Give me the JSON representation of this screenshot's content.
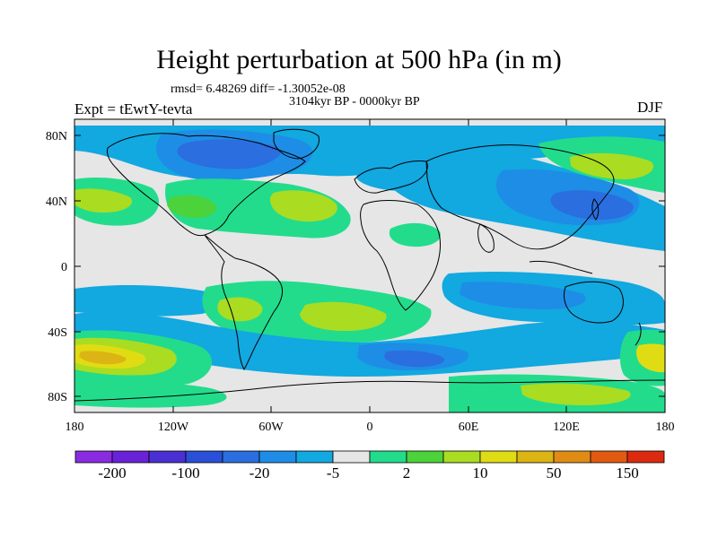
{
  "header": {
    "title": "Height perturbation at 500 hPa (in m)",
    "stats": "rmsd= 6.48269 diff= -1.30052e-08",
    "period": "3104kyr BP - 0000kyr BP",
    "experiment": "Expt = tEwtY-tevta",
    "season": "DJF"
  },
  "map": {
    "lat_labels": [
      "80N",
      "40N",
      "0",
      "40S",
      "80S"
    ],
    "lon_labels": [
      "180",
      "120W",
      "60W",
      "0",
      "60E",
      "120E",
      "180"
    ]
  },
  "colorbar": {
    "colors": [
      "#8a2be2",
      "#6a22d8",
      "#4a2fd2",
      "#2a4fd8",
      "#2a6ee0",
      "#1e8de6",
      "#12a8e0",
      "#e6e6e6",
      "#22dc8c",
      "#4cd23a",
      "#aadc22",
      "#e0dc14",
      "#dcb414",
      "#e08c14",
      "#e05a10",
      "#dc2a10"
    ],
    "labels": [
      "-200",
      "-100",
      "-20",
      "-5",
      "2",
      "10",
      "50",
      "150"
    ]
  },
  "legend_colors": {
    "land_outline": "#000000",
    "neutral": "#e6e6e6",
    "blue_light": "#12a8e0",
    "blue_mid": "#1e8de6",
    "blue_deep": "#2a6ee0",
    "green": "#22dc8c",
    "green_mid": "#4cd23a",
    "yellow_green": "#aadc22",
    "yellow": "#e0dc14",
    "orange": "#dcb414"
  }
}
